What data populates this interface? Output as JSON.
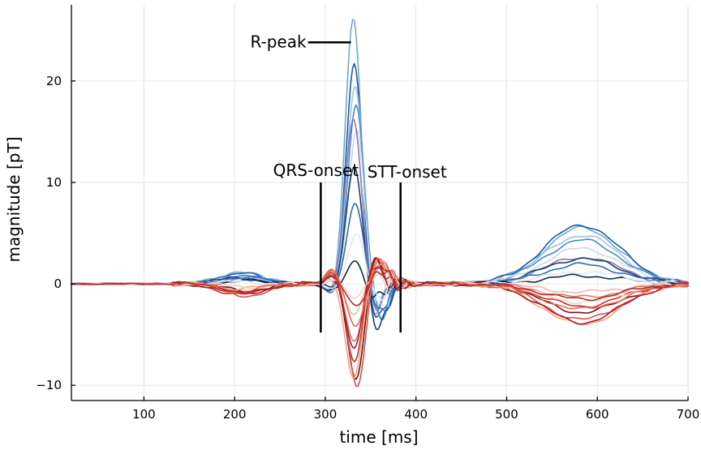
{
  "chart_data": {
    "type": "line",
    "title": "",
    "xlabel": "time [ms]",
    "ylabel": "magnitude [pT]",
    "xlim": [
      20,
      700
    ],
    "ylim": [
      -11.5,
      27.5
    ],
    "x_ticks": [
      100,
      200,
      300,
      400,
      500,
      600,
      700
    ],
    "y_ticks": [
      -10,
      0,
      10,
      20
    ],
    "x_tick_labels": [
      "100",
      "200",
      "300",
      "400",
      "500",
      "600",
      "700"
    ],
    "y_tick_labels": [
      "−10",
      "0",
      "10",
      "20"
    ],
    "grid": true,
    "legend": "none",
    "annotations": {
      "r_peak": {
        "label": "R-peak",
        "x": 331,
        "y": 23.8
      },
      "qrs_onset": {
        "label": "QRS-onset",
        "x": 295,
        "y_range": [
          -4.8,
          10
        ]
      },
      "stt_onset": {
        "label": "STT-onset",
        "x": 383,
        "y_range": [
          -4.8,
          10
        ]
      }
    },
    "series": [
      {
        "color": "#6fa9dc",
        "values": {
          "p": 1.2,
          "q": -1.4,
          "r": 26.5,
          "s": -3.8,
          "t": 5.5
        }
      },
      {
        "color": "#1f5aa6",
        "values": {
          "p": 1.0,
          "q": -1.2,
          "r": 21.8,
          "s": -4.2,
          "t": 5.8
        }
      },
      {
        "color": "#9fc3e6",
        "values": {
          "p": 0.8,
          "q": -1.0,
          "r": 19.5,
          "s": -3.5,
          "t": 4.8
        }
      },
      {
        "color": "#4a8ac8",
        "values": {
          "p": 0.9,
          "q": -1.1,
          "r": 17.8,
          "s": -3.2,
          "t": 4.3
        }
      },
      {
        "color": "#c6daf0",
        "values": {
          "p": 0.5,
          "q": -0.8,
          "r": 15.8,
          "s": -2.8,
          "t": 3.5
        }
      },
      {
        "color": "#8a7ab8",
        "values": {
          "p": 0.4,
          "q": -0.7,
          "r": 16.3,
          "s": -2.6,
          "t": 2.6
        }
      },
      {
        "color": "#17406e",
        "values": {
          "p": 0.6,
          "q": -0.9,
          "r": 11.5,
          "s": -4.5,
          "t": 2.5
        }
      },
      {
        "color": "#2e6db4",
        "values": {
          "p": 0.7,
          "q": -0.6,
          "r": 8.0,
          "s": -3.0,
          "t": 1.9
        }
      },
      {
        "color": "#0d2a4a",
        "values": {
          "p": 0.3,
          "q": -0.4,
          "r": 2.5,
          "s": -1.8,
          "t": 0.8
        }
      },
      {
        "color": "#dde8f4",
        "values": {
          "p": 0.2,
          "q": -0.3,
          "r": 5.0,
          "s": -1.5,
          "t": 1.2
        }
      },
      {
        "color": "#f0b8a8",
        "values": {
          "p": -0.6,
          "q": 0.8,
          "r": -3.0,
          "s": 1.5,
          "t": -0.8
        }
      },
      {
        "color": "#e37b64",
        "values": {
          "p": -0.9,
          "q": 1.0,
          "r": -5.5,
          "s": 2.2,
          "t": -1.3
        }
      },
      {
        "color": "#c4302b",
        "values": {
          "p": -1.1,
          "q": 1.3,
          "r": -8.0,
          "s": 2.8,
          "t": -2.2
        }
      },
      {
        "color": "#7a1010",
        "values": {
          "p": -0.7,
          "q": 0.9,
          "r": -9.8,
          "s": 3.0,
          "t": -2.8
        }
      },
      {
        "color": "#d9534f",
        "values": {
          "p": -1.2,
          "q": 1.4,
          "r": -10.2,
          "s": 2.5,
          "t": -3.5
        }
      },
      {
        "color": "#f4a582",
        "values": {
          "p": -0.5,
          "q": 0.6,
          "r": -9.2,
          "s": 1.8,
          "t": -4.0
        }
      },
      {
        "color": "#b2182b",
        "values": {
          "p": -1.0,
          "q": 1.1,
          "r": -6.5,
          "s": 2.0,
          "t": -3.8
        }
      },
      {
        "color": "#fbd0c0",
        "values": {
          "p": -0.3,
          "q": 0.4,
          "r": -1.5,
          "s": 0.9,
          "t": -1.8
        }
      },
      {
        "color": "#e86a50",
        "values": {
          "p": -0.8,
          "q": 1.2,
          "r": -4.2,
          "s": 2.4,
          "t": -2.5
        }
      },
      {
        "color": "#a83232",
        "values": {
          "p": -0.9,
          "q": 0.7,
          "r": -2.2,
          "s": 1.2,
          "t": -1.5
        }
      }
    ]
  }
}
